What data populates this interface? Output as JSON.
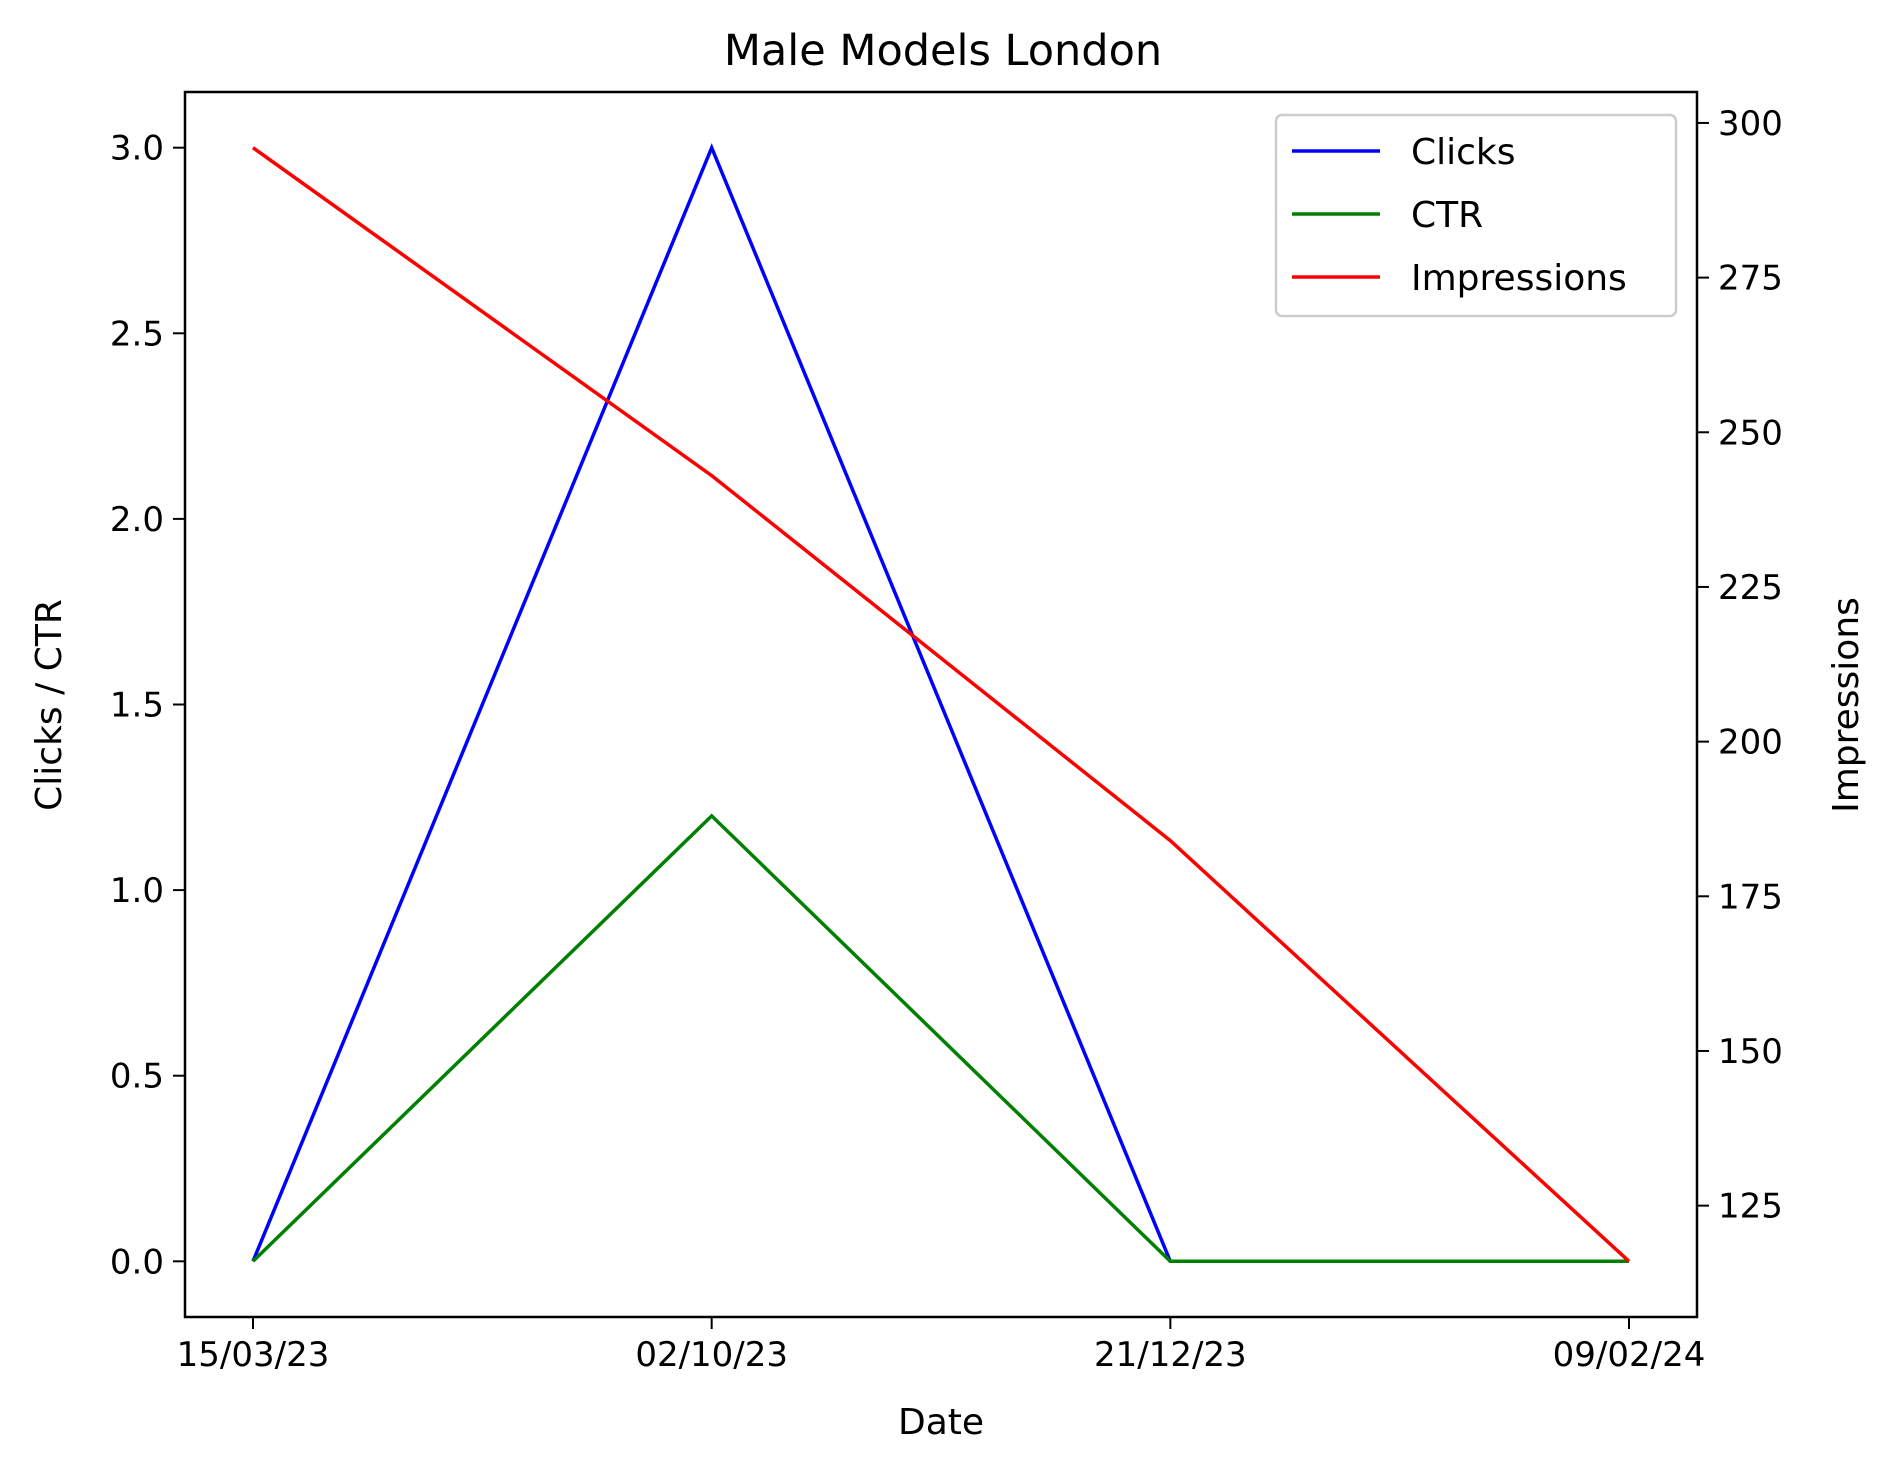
{
  "chart_data": {
    "type": "line",
    "title": "Male Models London",
    "xlabel": "Date",
    "ylabel_left": "Clicks / CTR",
    "ylabel_right": "Impressions",
    "categories": [
      "15/03/23",
      "02/10/23",
      "21/12/23",
      "09/02/24"
    ],
    "left_axis": {
      "ylim": [
        -0.15,
        3.15
      ],
      "ticks": [
        0.0,
        0.5,
        1.0,
        1.5,
        2.0,
        2.5,
        3.0
      ],
      "tick_labels": [
        "0.0",
        "0.5",
        "1.0",
        "1.5",
        "2.0",
        "2.5",
        "3.0"
      ]
    },
    "right_axis": {
      "ylim": [
        107,
        305
      ],
      "ticks": [
        125,
        150,
        175,
        200,
        225,
        250,
        275,
        300
      ],
      "tick_labels": [
        "125",
        "150",
        "175",
        "200",
        "225",
        "250",
        "275",
        "300"
      ]
    },
    "series": [
      {
        "name": "Clicks",
        "axis": "left",
        "color": "#0000ff",
        "values": [
          0,
          3,
          0,
          0
        ]
      },
      {
        "name": "CTR",
        "axis": "left",
        "color": "#008000",
        "values": [
          0,
          1.2,
          0,
          0
        ]
      },
      {
        "name": "Impressions",
        "axis": "right",
        "color": "#ff0000",
        "values": [
          296,
          243,
          184,
          116
        ]
      }
    ],
    "legend": {
      "placement": "top-right"
    },
    "grid": false
  }
}
